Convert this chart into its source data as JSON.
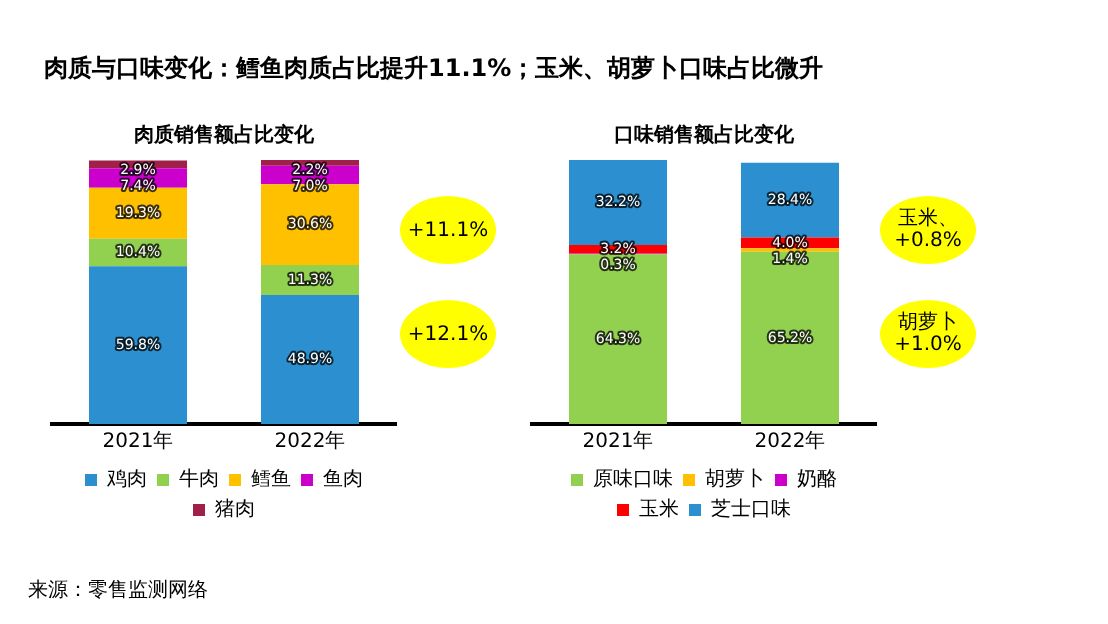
{
  "chart_data": [
    {
      "type": "other",
      "title": "肉质与口味变化：鳕鱼肉质占比提升11.1%；玉米、胡萝卜口味占比微升",
      "annotations": [
        "来源：零售监测网络"
      ]
    },
    {
      "type": "bar",
      "title": "肉质销售额占比变化",
      "categories": [
        "2021年",
        "2022年"
      ],
      "stacked": true,
      "legend": "bottom",
      "tick_labels": "x",
      "series": [
        {
          "name": "鸡肉",
          "color": "#2b8fd0",
          "values": [
            59.8,
            48.9
          ],
          "value_labels": [
            "59.8%",
            "48.9%"
          ]
        },
        {
          "name": "牛肉",
          "color": "#92d050",
          "values": [
            10.4,
            11.3
          ],
          "value_labels": [
            "10.4%",
            "11.3%"
          ]
        },
        {
          "name": "鳕鱼",
          "color": "#ffc000",
          "values": [
            19.3,
            30.6
          ],
          "value_labels": [
            "19.3%",
            "30.6%"
          ]
        },
        {
          "name": "鱼肉",
          "color": "#cc00cc",
          "values": [
            7.4,
            7.0
          ],
          "value_labels": [
            "7.4%",
            "7.0%"
          ]
        },
        {
          "name": "猪肉",
          "color": "#a0204a",
          "values": [
            2.9,
            2.2
          ],
          "value_labels": [
            "2.9%",
            "2.2%"
          ]
        }
      ],
      "annotations": [
        "+11.1%",
        "+12.1%"
      ]
    },
    {
      "type": "bar",
      "title": "口味销售额占比变化",
      "categories": [
        "2021年",
        "2022年"
      ],
      "stacked": true,
      "legend": "bottom",
      "tick_labels": "x",
      "series": [
        {
          "name": "原味口味",
          "color": "#92d050",
          "values": [
            64.3,
            65.2
          ],
          "value_labels": [
            "64.3%",
            "65.2%"
          ]
        },
        {
          "name": "胡萝卜",
          "color": "#ffc000",
          "values": [
            null,
            1.4
          ],
          "value_labels": [
            null,
            "1.4%"
          ]
        },
        {
          "name": "奶酪",
          "color": "#cc00cc",
          "values": [
            0.3,
            null
          ],
          "value_labels": [
            "0.3%",
            null
          ]
        },
        {
          "name": "玉米",
          "color": "#ff0000",
          "values": [
            3.2,
            4.0
          ],
          "value_labels": [
            "3.2%",
            "4.0%"
          ]
        },
        {
          "name": "芝士口味",
          "color": "#2b8fd0",
          "values": [
            32.2,
            28.4
          ],
          "value_labels": [
            "32.2%",
            "28.4%"
          ]
        }
      ],
      "annotations": [
        "玉米、+0.8%",
        "胡萝卜+1.0%"
      ]
    }
  ]
}
